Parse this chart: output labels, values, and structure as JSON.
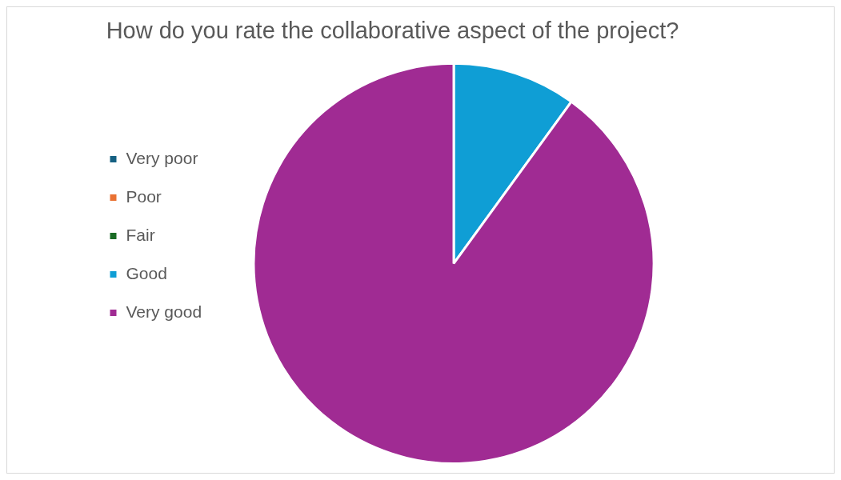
{
  "chart_data": {
    "type": "pie",
    "title": "How do you rate the collaborative aspect of the project?",
    "categories": [
      "Very poor",
      "Poor",
      "Fair",
      "Good",
      "Very good"
    ],
    "values": [
      0,
      0,
      0,
      10,
      90
    ],
    "colors": [
      "#156082",
      "#e97132",
      "#196b24",
      "#0f9ed5",
      "#a02b93"
    ],
    "legend": "left"
  }
}
